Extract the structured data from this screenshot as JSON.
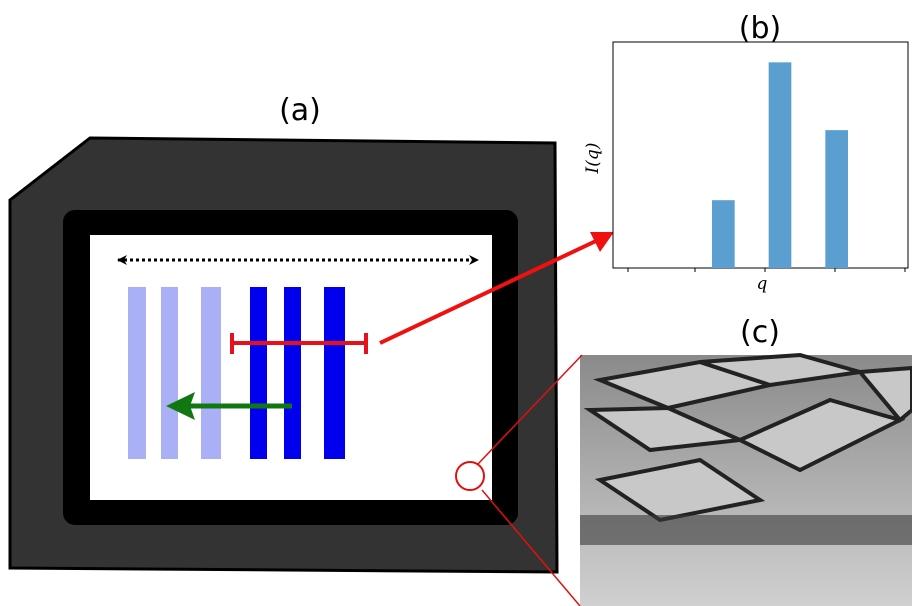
{
  "labels": {
    "a": "(a)",
    "b": "(b)",
    "c": "(c)"
  },
  "chart_data": {
    "type": "bar",
    "xlabel": "q",
    "ylabel": "I(q)",
    "categories": [
      null,
      null,
      null
    ],
    "values": [
      0.3,
      0.91,
      0.61
    ],
    "color": "#5b9fd0",
    "ylim": [
      0,
      1
    ]
  }
}
